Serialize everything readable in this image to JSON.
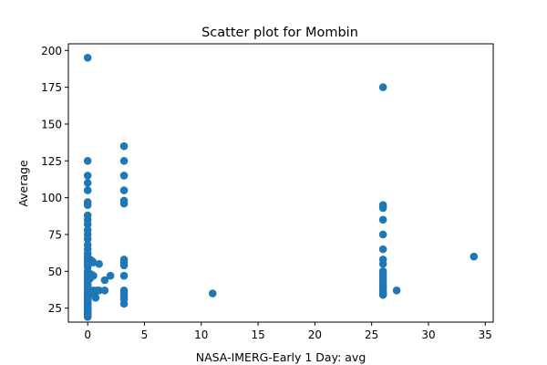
{
  "chart_data": {
    "type": "scatter",
    "title": "Scatter plot for Mombin",
    "xlabel": "NASA-IMERG-Early 1 Day: avg",
    "ylabel": "Average",
    "xlim": [
      -1.7,
      35.7
    ],
    "ylim": [
      15.5,
      204.5
    ],
    "xticks": [
      0,
      5,
      10,
      15,
      20,
      25,
      30,
      35
    ],
    "yticks": [
      25,
      50,
      75,
      100,
      125,
      150,
      175,
      200
    ],
    "grid": false,
    "legend": "none",
    "color": "#1f77b4",
    "series": [
      {
        "points": [
          [
            0,
            195
          ],
          [
            0,
            125
          ],
          [
            0,
            115
          ],
          [
            0,
            110
          ],
          [
            0,
            105
          ],
          [
            0,
            97
          ],
          [
            0,
            95
          ],
          [
            0,
            88
          ],
          [
            0,
            85
          ],
          [
            0,
            82
          ],
          [
            0,
            78
          ],
          [
            0,
            75
          ],
          [
            0,
            72
          ],
          [
            0,
            68
          ],
          [
            0,
            65
          ],
          [
            0,
            62
          ],
          [
            0,
            60
          ],
          [
            0,
            58
          ],
          [
            0,
            56
          ],
          [
            0,
            55
          ],
          [
            0,
            53
          ],
          [
            0,
            50
          ],
          [
            0,
            48
          ],
          [
            0,
            46
          ],
          [
            0,
            45
          ],
          [
            0,
            43
          ],
          [
            0,
            41
          ],
          [
            0,
            40
          ],
          [
            0,
            38
          ],
          [
            0,
            37
          ],
          [
            0,
            35
          ],
          [
            0,
            34
          ],
          [
            0,
            33
          ],
          [
            0,
            32
          ],
          [
            0,
            31
          ],
          [
            0,
            30
          ],
          [
            0,
            29
          ],
          [
            0,
            28
          ],
          [
            0,
            27
          ],
          [
            0,
            26
          ],
          [
            0,
            25
          ],
          [
            0,
            24
          ],
          [
            0,
            23
          ],
          [
            0,
            22
          ],
          [
            0,
            21
          ],
          [
            0,
            20
          ],
          [
            0,
            19
          ],
          [
            0.2,
            58
          ],
          [
            0.2,
            45
          ],
          [
            0.2,
            35
          ],
          [
            0.3,
            48
          ],
          [
            0.4,
            57
          ],
          [
            0.5,
            56
          ],
          [
            0.5,
            47
          ],
          [
            0.5,
            37
          ],
          [
            0.6,
            35
          ],
          [
            0.7,
            32
          ],
          [
            0.8,
            37
          ],
          [
            1.0,
            55
          ],
          [
            1.0,
            37
          ],
          [
            1.5,
            44
          ],
          [
            1.5,
            37
          ],
          [
            2.0,
            47
          ],
          [
            3.2,
            135
          ],
          [
            3.2,
            125
          ],
          [
            3.2,
            115
          ],
          [
            3.2,
            105
          ],
          [
            3.2,
            98
          ],
          [
            3.2,
            96
          ],
          [
            3.2,
            58
          ],
          [
            3.2,
            56
          ],
          [
            3.2,
            54
          ],
          [
            3.2,
            47
          ],
          [
            3.2,
            37
          ],
          [
            3.2,
            35
          ],
          [
            3.2,
            33
          ],
          [
            3.2,
            31
          ],
          [
            3.2,
            28
          ],
          [
            11,
            35
          ],
          [
            26,
            175
          ],
          [
            26,
            95
          ],
          [
            26,
            93
          ],
          [
            26,
            85
          ],
          [
            26,
            75
          ],
          [
            26,
            65
          ],
          [
            26,
            58
          ],
          [
            26,
            55
          ],
          [
            26,
            50
          ],
          [
            26,
            48
          ],
          [
            26,
            46
          ],
          [
            26,
            44
          ],
          [
            26,
            42
          ],
          [
            26,
            40
          ],
          [
            26,
            38
          ],
          [
            26,
            36
          ],
          [
            26,
            35
          ],
          [
            26,
            34
          ],
          [
            27.2,
            37
          ],
          [
            34,
            60
          ]
        ]
      }
    ]
  }
}
